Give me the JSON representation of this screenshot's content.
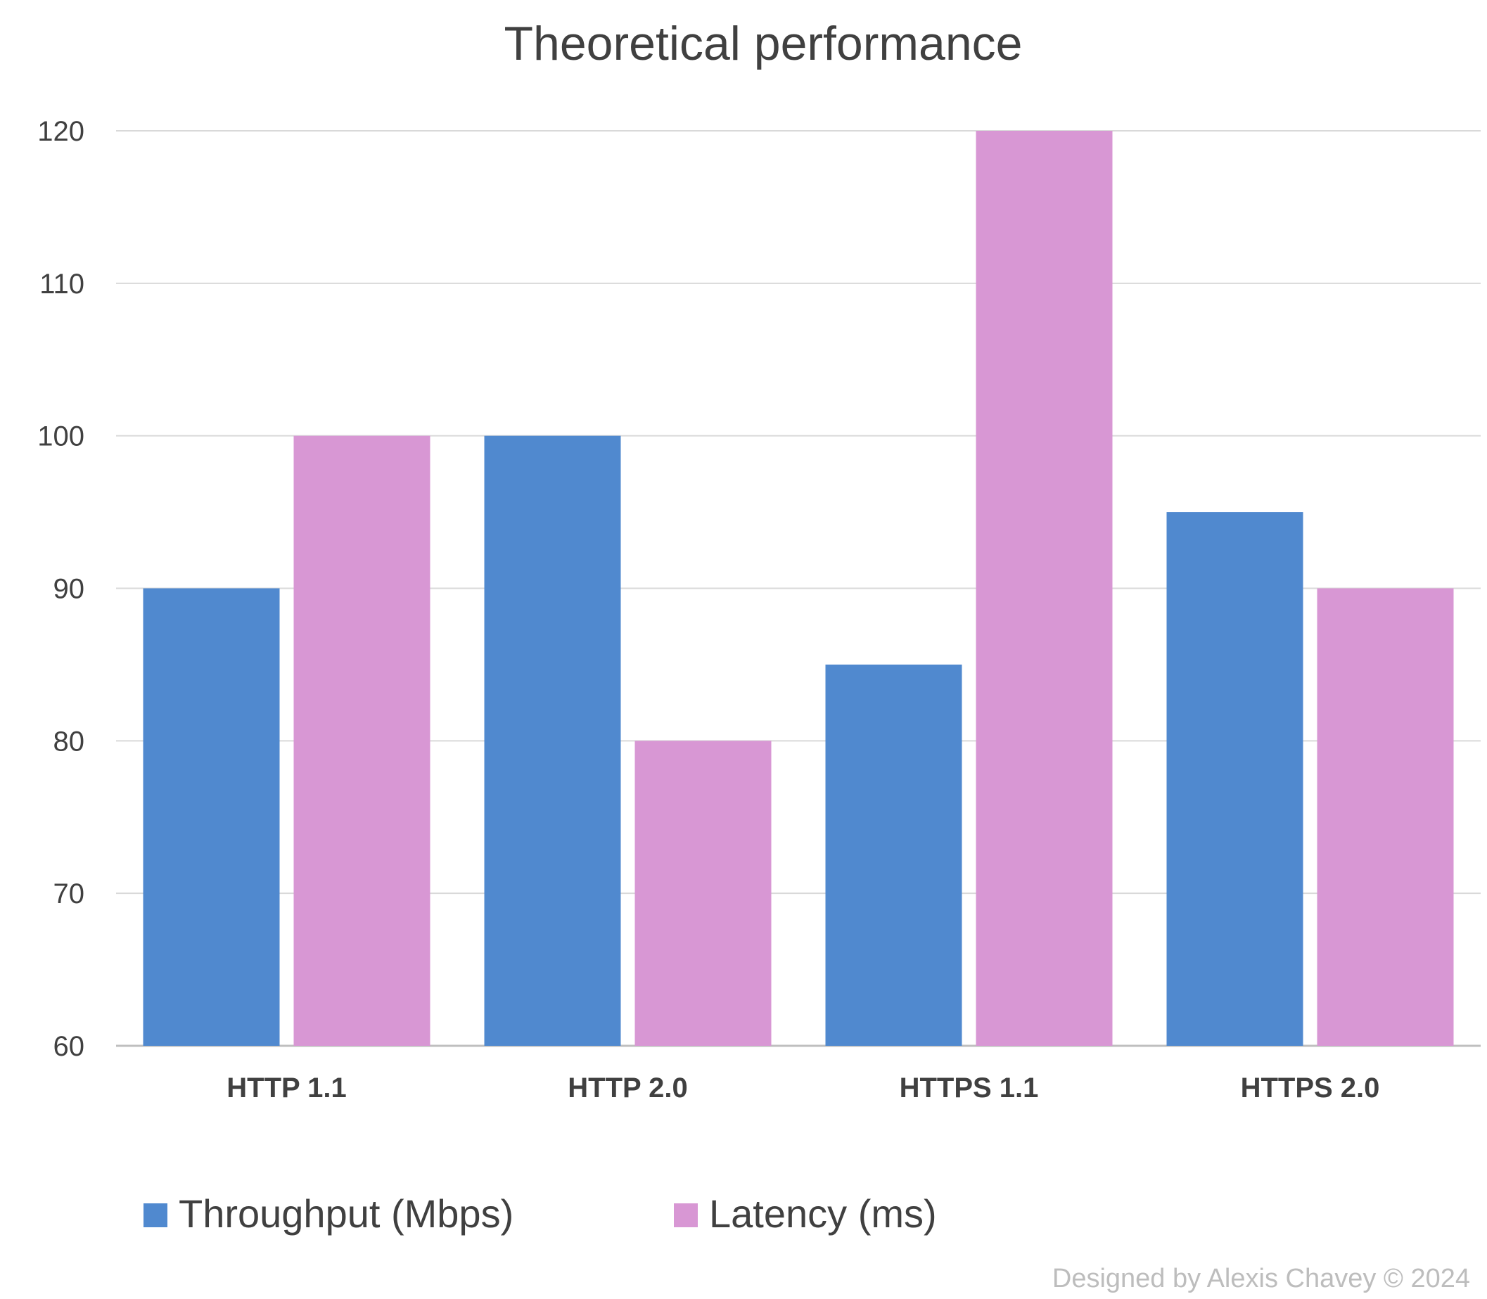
{
  "chart_data": {
    "type": "bar",
    "title": "Theoretical performance",
    "categories": [
      "HTTP 1.1",
      "HTTP 2.0",
      "HTTPS 1.1",
      "HTTPS 2.0"
    ],
    "series": [
      {
        "name": "Throughput (Mbps)",
        "values": [
          90,
          100,
          85,
          95
        ],
        "color": "#5089CF"
      },
      {
        "name": "Latency (ms)",
        "values": [
          100,
          80,
          120,
          90
        ],
        "color": "#D897D4"
      }
    ],
    "xlabel": "",
    "ylabel": "",
    "ylim": [
      60,
      120
    ],
    "yticks": [
      "60",
      "70",
      "80",
      "90",
      "100",
      "110",
      "120"
    ],
    "grid": true,
    "legend_position": "bottom-left"
  },
  "footer": {
    "credit": "Designed by Alexis Chavey  © 2024"
  },
  "colors": {
    "grid": "#D9D9D9",
    "axis": "#BFBFBF",
    "text": "#404040",
    "credit": "#BDBDBD"
  }
}
